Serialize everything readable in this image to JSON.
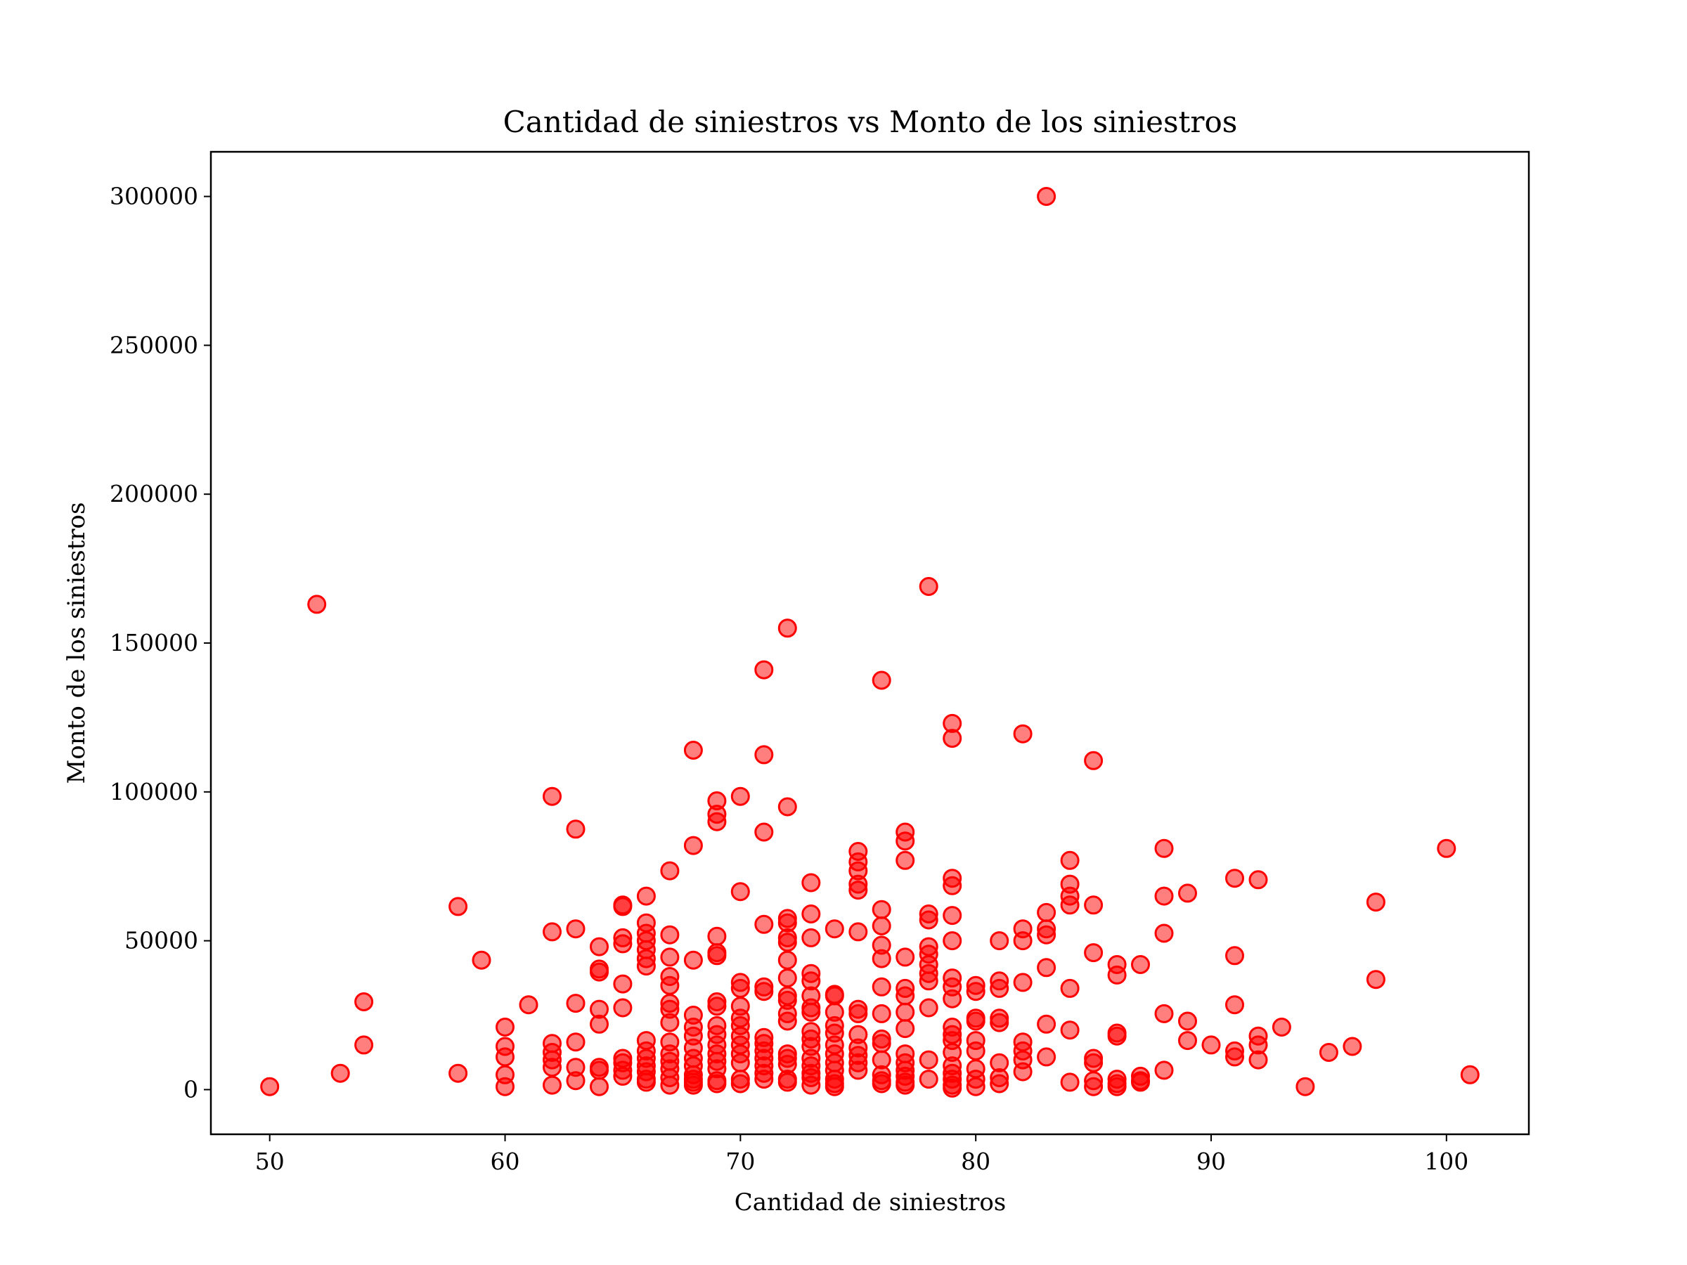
{
  "chart_data": {
    "type": "scatter",
    "title": "Cantidad de siniestros vs Monto de los siniestros",
    "xlabel": "Cantidad de siniestros",
    "ylabel": "Monto de los siniestros",
    "xlim": [
      47.5,
      103.5
    ],
    "ylim": [
      -15000,
      315000
    ],
    "xticks": [
      50,
      60,
      70,
      80,
      90,
      100
    ],
    "yticks": [
      0,
      50000,
      100000,
      150000,
      200000,
      250000,
      300000
    ],
    "grid": false,
    "marker_color": "#ff0000",
    "series": [
      {
        "points": [
          [
            50,
            1000
          ],
          [
            52,
            163000
          ],
          [
            53,
            5500
          ],
          [
            54,
            29500
          ],
          [
            54,
            15000
          ],
          [
            58,
            61500
          ],
          [
            58,
            5500
          ],
          [
            59,
            43500
          ],
          [
            60,
            21000
          ],
          [
            60,
            14500
          ],
          [
            60,
            11000
          ],
          [
            60,
            5000
          ],
          [
            60,
            1000
          ],
          [
            61,
            28500
          ],
          [
            62,
            98500
          ],
          [
            62,
            53000
          ],
          [
            62,
            15500
          ],
          [
            62,
            12500
          ],
          [
            62,
            10000
          ],
          [
            62,
            7500
          ],
          [
            62,
            1500
          ],
          [
            63,
            87500
          ],
          [
            63,
            54000
          ],
          [
            63,
            29000
          ],
          [
            63,
            16000
          ],
          [
            63,
            7500
          ],
          [
            63,
            3000
          ],
          [
            64,
            48000
          ],
          [
            64,
            40500
          ],
          [
            64,
            39500
          ],
          [
            64,
            27000
          ],
          [
            64,
            22000
          ],
          [
            64,
            7500
          ],
          [
            64,
            6500
          ],
          [
            64,
            1000
          ],
          [
            65,
            62000
          ],
          [
            65,
            61500
          ],
          [
            65,
            51000
          ],
          [
            65,
            49000
          ],
          [
            65,
            35500
          ],
          [
            65,
            27500
          ],
          [
            65,
            10500
          ],
          [
            65,
            9000
          ],
          [
            65,
            6500
          ],
          [
            65,
            4500
          ],
          [
            66,
            65000
          ],
          [
            66,
            56000
          ],
          [
            66,
            52500
          ],
          [
            66,
            50000
          ],
          [
            66,
            47000
          ],
          [
            66,
            44000
          ],
          [
            66,
            41500
          ],
          [
            66,
            16500
          ],
          [
            66,
            13000
          ],
          [
            66,
            10500
          ],
          [
            66,
            8000
          ],
          [
            66,
            6000
          ],
          [
            66,
            3500
          ],
          [
            66,
            2500
          ],
          [
            67,
            73500
          ],
          [
            67,
            52000
          ],
          [
            67,
            44500
          ],
          [
            67,
            38000
          ],
          [
            67,
            35000
          ],
          [
            67,
            29000
          ],
          [
            67,
            27000
          ],
          [
            67,
            22500
          ],
          [
            67,
            16000
          ],
          [
            67,
            12000
          ],
          [
            67,
            9500
          ],
          [
            67,
            7000
          ],
          [
            67,
            4000
          ],
          [
            67,
            1500
          ],
          [
            68,
            114000
          ],
          [
            68,
            82000
          ],
          [
            68,
            43500
          ],
          [
            68,
            25000
          ],
          [
            68,
            21000
          ],
          [
            68,
            18000
          ],
          [
            68,
            14000
          ],
          [
            68,
            10500
          ],
          [
            68,
            8000
          ],
          [
            68,
            5000
          ],
          [
            68,
            3500
          ],
          [
            68,
            2500
          ],
          [
            68,
            1500
          ],
          [
            69,
            97000
          ],
          [
            69,
            92500
          ],
          [
            69,
            90000
          ],
          [
            69,
            51500
          ],
          [
            69,
            46000
          ],
          [
            69,
            45000
          ],
          [
            69,
            29500
          ],
          [
            69,
            28000
          ],
          [
            69,
            21500
          ],
          [
            69,
            18500
          ],
          [
            69,
            15000
          ],
          [
            69,
            12000
          ],
          [
            69,
            9500
          ],
          [
            69,
            7000
          ],
          [
            69,
            3000
          ],
          [
            69,
            2000
          ],
          [
            70,
            98500
          ],
          [
            70,
            66500
          ],
          [
            70,
            36000
          ],
          [
            70,
            34000
          ],
          [
            70,
            28000
          ],
          [
            70,
            24000
          ],
          [
            70,
            21500
          ],
          [
            70,
            18000
          ],
          [
            70,
            15000
          ],
          [
            70,
            12000
          ],
          [
            70,
            9000
          ],
          [
            70,
            3500
          ],
          [
            70,
            2000
          ],
          [
            71,
            141000
          ],
          [
            71,
            112500
          ],
          [
            71,
            86500
          ],
          [
            71,
            55500
          ],
          [
            71,
            34500
          ],
          [
            71,
            33000
          ],
          [
            71,
            17500
          ],
          [
            71,
            15500
          ],
          [
            71,
            13000
          ],
          [
            71,
            10500
          ],
          [
            71,
            8000
          ],
          [
            71,
            5500
          ],
          [
            71,
            3500
          ],
          [
            72,
            155000
          ],
          [
            72,
            95000
          ],
          [
            72,
            57500
          ],
          [
            72,
            56000
          ],
          [
            72,
            51000
          ],
          [
            72,
            49500
          ],
          [
            72,
            43500
          ],
          [
            72,
            37500
          ],
          [
            72,
            31500
          ],
          [
            72,
            30000
          ],
          [
            72,
            25500
          ],
          [
            72,
            23000
          ],
          [
            72,
            12000
          ],
          [
            72,
            10500
          ],
          [
            72,
            8500
          ],
          [
            72,
            3500
          ],
          [
            72,
            2500
          ],
          [
            73,
            69500
          ],
          [
            73,
            59000
          ],
          [
            73,
            51000
          ],
          [
            73,
            39000
          ],
          [
            73,
            36500
          ],
          [
            73,
            31500
          ],
          [
            73,
            27500
          ],
          [
            73,
            26000
          ],
          [
            73,
            19500
          ],
          [
            73,
            17000
          ],
          [
            73,
            14500
          ],
          [
            73,
            10500
          ],
          [
            73,
            8000
          ],
          [
            73,
            5500
          ],
          [
            73,
            4000
          ],
          [
            73,
            1500
          ],
          [
            74,
            54000
          ],
          [
            74,
            32000
          ],
          [
            74,
            31500
          ],
          [
            74,
            26000
          ],
          [
            74,
            21500
          ],
          [
            74,
            19000
          ],
          [
            74,
            15000
          ],
          [
            74,
            12000
          ],
          [
            74,
            9000
          ],
          [
            74,
            6500
          ],
          [
            74,
            3500
          ],
          [
            74,
            2000
          ],
          [
            74,
            1000
          ],
          [
            75,
            80000
          ],
          [
            75,
            76500
          ],
          [
            75,
            73500
          ],
          [
            75,
            69000
          ],
          [
            75,
            67000
          ],
          [
            75,
            53000
          ],
          [
            75,
            27000
          ],
          [
            75,
            25500
          ],
          [
            75,
            18500
          ],
          [
            75,
            14000
          ],
          [
            75,
            11500
          ],
          [
            75,
            9000
          ],
          [
            75,
            6500
          ],
          [
            76,
            137500
          ],
          [
            76,
            60500
          ],
          [
            76,
            55000
          ],
          [
            76,
            48500
          ],
          [
            76,
            44000
          ],
          [
            76,
            34500
          ],
          [
            76,
            25500
          ],
          [
            76,
            17000
          ],
          [
            76,
            15500
          ],
          [
            76,
            10000
          ],
          [
            76,
            5000
          ],
          [
            76,
            3000
          ],
          [
            76,
            2000
          ],
          [
            77,
            86500
          ],
          [
            77,
            83500
          ],
          [
            77,
            77000
          ],
          [
            77,
            44500
          ],
          [
            77,
            34000
          ],
          [
            77,
            31500
          ],
          [
            77,
            26000
          ],
          [
            77,
            20500
          ],
          [
            77,
            12000
          ],
          [
            77,
            9000
          ],
          [
            77,
            6500
          ],
          [
            77,
            4500
          ],
          [
            77,
            2500
          ],
          [
            77,
            1500
          ],
          [
            78,
            169000
          ],
          [
            78,
            59000
          ],
          [
            78,
            57000
          ],
          [
            78,
            48000
          ],
          [
            78,
            45500
          ],
          [
            78,
            42000
          ],
          [
            78,
            39000
          ],
          [
            78,
            36500
          ],
          [
            78,
            27500
          ],
          [
            78,
            10000
          ],
          [
            78,
            3500
          ],
          [
            79,
            123000
          ],
          [
            79,
            118000
          ],
          [
            79,
            71000
          ],
          [
            79,
            68500
          ],
          [
            79,
            58500
          ],
          [
            79,
            50000
          ],
          [
            79,
            37500
          ],
          [
            79,
            34500
          ],
          [
            79,
            30500
          ],
          [
            79,
            21000
          ],
          [
            79,
            18500
          ],
          [
            79,
            16500
          ],
          [
            79,
            12500
          ],
          [
            79,
            8000
          ],
          [
            79,
            5500
          ],
          [
            79,
            3500
          ],
          [
            79,
            1500
          ],
          [
            79,
            500
          ],
          [
            80,
            35000
          ],
          [
            80,
            33000
          ],
          [
            80,
            24000
          ],
          [
            80,
            23000
          ],
          [
            80,
            16500
          ],
          [
            80,
            13000
          ],
          [
            80,
            7000
          ],
          [
            80,
            3500
          ],
          [
            80,
            1000
          ],
          [
            81,
            50000
          ],
          [
            81,
            36500
          ],
          [
            81,
            34000
          ],
          [
            81,
            24000
          ],
          [
            81,
            22500
          ],
          [
            81,
            9000
          ],
          [
            81,
            4000
          ],
          [
            81,
            2000
          ],
          [
            82,
            119500
          ],
          [
            82,
            54000
          ],
          [
            82,
            50000
          ],
          [
            82,
            36000
          ],
          [
            82,
            16000
          ],
          [
            82,
            13000
          ],
          [
            82,
            10000
          ],
          [
            82,
            6000
          ],
          [
            83,
            300000
          ],
          [
            83,
            59500
          ],
          [
            83,
            54000
          ],
          [
            83,
            52000
          ],
          [
            83,
            41000
          ],
          [
            83,
            22000
          ],
          [
            83,
            11000
          ],
          [
            84,
            77000
          ],
          [
            84,
            69000
          ],
          [
            84,
            65000
          ],
          [
            84,
            62000
          ],
          [
            84,
            34000
          ],
          [
            84,
            20000
          ],
          [
            84,
            2500
          ],
          [
            85,
            110500
          ],
          [
            85,
            62000
          ],
          [
            85,
            46000
          ],
          [
            85,
            10500
          ],
          [
            85,
            9000
          ],
          [
            85,
            3000
          ],
          [
            85,
            1000
          ],
          [
            86,
            42000
          ],
          [
            86,
            38500
          ],
          [
            86,
            19000
          ],
          [
            86,
            18000
          ],
          [
            86,
            3500
          ],
          [
            86,
            2000
          ],
          [
            86,
            1000
          ],
          [
            87,
            42000
          ],
          [
            87,
            4500
          ],
          [
            87,
            3000
          ],
          [
            87,
            2500
          ],
          [
            88,
            81000
          ],
          [
            88,
            65000
          ],
          [
            88,
            52500
          ],
          [
            88,
            25500
          ],
          [
            88,
            6500
          ],
          [
            89,
            66000
          ],
          [
            89,
            23000
          ],
          [
            89,
            16500
          ],
          [
            90,
            15000
          ],
          [
            91,
            71000
          ],
          [
            91,
            45000
          ],
          [
            91,
            28500
          ],
          [
            91,
            13000
          ],
          [
            91,
            11000
          ],
          [
            92,
            70500
          ],
          [
            92,
            18000
          ],
          [
            92,
            15000
          ],
          [
            92,
            10000
          ],
          [
            93,
            21000
          ],
          [
            94,
            1000
          ],
          [
            95,
            12500
          ],
          [
            96,
            14500
          ],
          [
            97,
            63000
          ],
          [
            97,
            37000
          ],
          [
            100,
            81000
          ],
          [
            101,
            5000
          ]
        ]
      }
    ]
  }
}
